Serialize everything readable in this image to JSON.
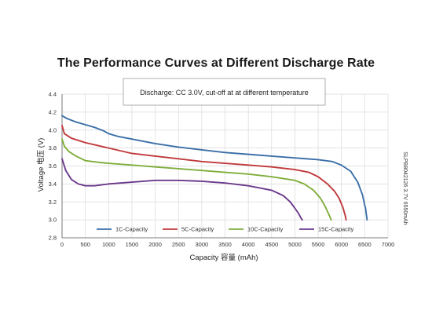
{
  "page": {
    "title": "The Performance Curves at Different Discharge Rate"
  },
  "chart_data": {
    "type": "line",
    "title": "The Performance Curves at Different Discharge Rate",
    "annotation": "Discharge: CC  3.0V, cut-off at at different temperature",
    "side_label": "SLPB8042126 3.7V 6550mAh",
    "xlabel": "Capacity 容量 (mAh)",
    "ylabel": "Voltage 电压 (V)",
    "xlim": [
      0,
      7000
    ],
    "ylim": [
      2.8,
      4.4
    ],
    "xticks": [
      "0",
      "500",
      "1000",
      "1500",
      "2000",
      "2500",
      "3000",
      "3500",
      "4000",
      "4500",
      "5000",
      "5500",
      "6000",
      "6500",
      "7000"
    ],
    "yticks": [
      "2.8",
      "3.0",
      "3.2",
      "3.4",
      "3.6",
      "3.8",
      "4.0",
      "4.2",
      "4.4"
    ],
    "grid": true,
    "legend_position": "bottom",
    "series": [
      {
        "name": "1C-Capacity",
        "color": "#3b6fa8",
        "x": [
          0,
          100,
          300,
          500,
          700,
          900,
          1000,
          1200,
          1500,
          2000,
          2500,
          3000,
          3500,
          4000,
          4500,
          5000,
          5500,
          5800,
          6000,
          6200,
          6350,
          6450,
          6520,
          6550
        ],
        "y": [
          4.16,
          4.13,
          4.09,
          4.06,
          4.03,
          3.99,
          3.96,
          3.93,
          3.9,
          3.85,
          3.81,
          3.78,
          3.75,
          3.73,
          3.71,
          3.69,
          3.67,
          3.65,
          3.61,
          3.54,
          3.42,
          3.28,
          3.12,
          3.0
        ]
      },
      {
        "name": "5C-Capacity",
        "color": "#c0393b",
        "x": [
          0,
          50,
          200,
          500,
          1000,
          1500,
          2000,
          2500,
          3000,
          3500,
          4000,
          4500,
          5000,
          5300,
          5500,
          5700,
          5850,
          5950,
          6030,
          6080,
          6100
        ],
        "y": [
          4.05,
          3.96,
          3.91,
          3.86,
          3.8,
          3.74,
          3.71,
          3.68,
          3.65,
          3.63,
          3.61,
          3.59,
          3.56,
          3.53,
          3.48,
          3.4,
          3.32,
          3.24,
          3.14,
          3.05,
          3.0
        ]
      },
      {
        "name": "10C-Capacity",
        "color": "#7fae3a",
        "x": [
          0,
          50,
          150,
          300,
          500,
          800,
          1000,
          1500,
          2000,
          2500,
          3000,
          3500,
          4000,
          4500,
          5000,
          5200,
          5400,
          5550,
          5650,
          5730,
          5780
        ],
        "y": [
          3.9,
          3.82,
          3.76,
          3.71,
          3.66,
          3.64,
          3.63,
          3.61,
          3.59,
          3.57,
          3.55,
          3.53,
          3.51,
          3.48,
          3.44,
          3.4,
          3.33,
          3.24,
          3.15,
          3.06,
          3.0
        ]
      },
      {
        "name": "15C-Capacity",
        "color": "#6b3a8c",
        "x": [
          0,
          80,
          200,
          350,
          500,
          700,
          1000,
          1500,
          2000,
          2500,
          3000,
          3500,
          4000,
          4500,
          4750,
          4900,
          5000,
          5080,
          5130,
          5160
        ],
        "y": [
          3.68,
          3.55,
          3.45,
          3.4,
          3.38,
          3.38,
          3.4,
          3.42,
          3.44,
          3.44,
          3.43,
          3.41,
          3.38,
          3.33,
          3.27,
          3.2,
          3.13,
          3.07,
          3.02,
          3.0
        ]
      }
    ]
  }
}
